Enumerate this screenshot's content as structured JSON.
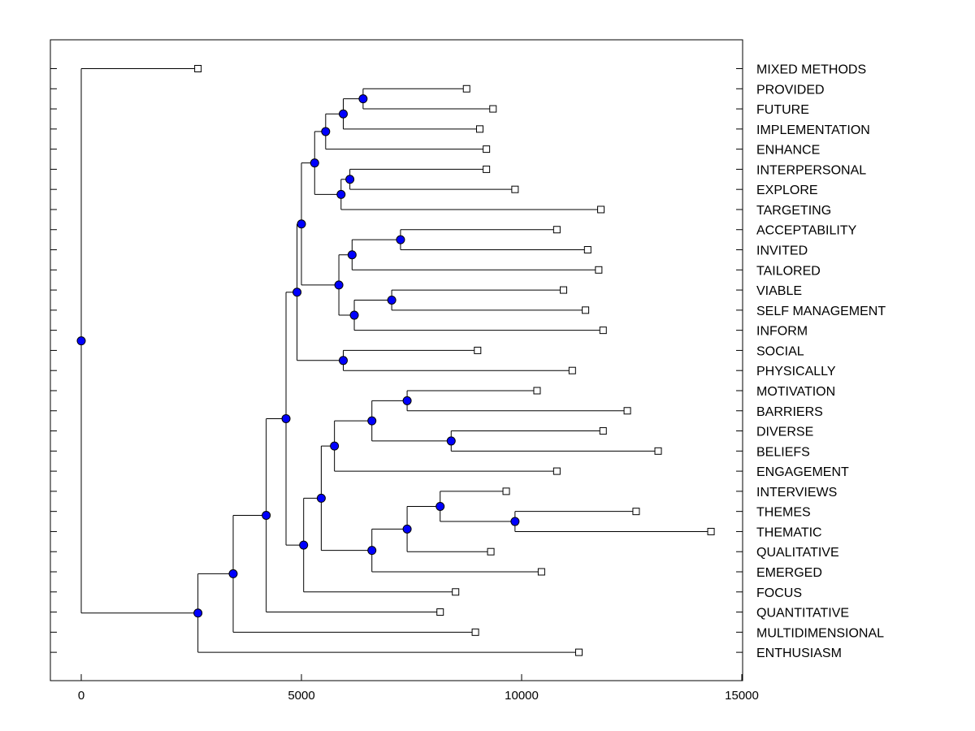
{
  "chart_data": {
    "type": "dendrogram",
    "orientation": "horizontal",
    "x_ticks": [
      0,
      5000,
      10000,
      15000
    ],
    "xlim": [
      -700,
      15000
    ],
    "colors": {
      "node": "#0000ff",
      "line": "#000000"
    },
    "leaves": [
      {
        "label": "MIXED METHODS",
        "x": 2650
      },
      {
        "label": "PROVIDED",
        "x": 8750
      },
      {
        "label": "FUTURE",
        "x": 9350
      },
      {
        "label": "IMPLEMENTATION",
        "x": 9050
      },
      {
        "label": "ENHANCE",
        "x": 9200
      },
      {
        "label": "INTERPERSONAL",
        "x": 9200
      },
      {
        "label": "EXPLORE",
        "x": 9850
      },
      {
        "label": "TARGETING",
        "x": 11800
      },
      {
        "label": "ACCEPTABILITY",
        "x": 10800
      },
      {
        "label": "INVITED",
        "x": 11500
      },
      {
        "label": "TAILORED",
        "x": 11750
      },
      {
        "label": "VIABLE",
        "x": 10950
      },
      {
        "label": "SELF MANAGEMENT",
        "x": 11450
      },
      {
        "label": "INFORM",
        "x": 11850
      },
      {
        "label": "SOCIAL",
        "x": 9000
      },
      {
        "label": "PHYSICALLY",
        "x": 11150
      },
      {
        "label": "MOTIVATION",
        "x": 10350
      },
      {
        "label": "BARRIERS",
        "x": 12400
      },
      {
        "label": "DIVERSE",
        "x": 11850
      },
      {
        "label": "BELIEFS",
        "x": 13100
      },
      {
        "label": "ENGAGEMENT",
        "x": 10800
      },
      {
        "label": "INTERVIEWS",
        "x": 9650
      },
      {
        "label": "THEMES",
        "x": 12600
      },
      {
        "label": "THEMATIC",
        "x": 14300
      },
      {
        "label": "QUALITATIVE",
        "x": 9300
      },
      {
        "label": "EMERGED",
        "x": 10450
      },
      {
        "label": "FOCUS",
        "x": 8500
      },
      {
        "label": "QUANTITATIVE",
        "x": 8150
      },
      {
        "label": "MULTIDIMENSIONAL",
        "x": 8950
      },
      {
        "label": "ENTHUSIASM",
        "x": 11300
      }
    ],
    "merges": [
      {
        "a": "L1",
        "b": "L2",
        "x": 6400
      },
      {
        "a": "M0",
        "b": "L3",
        "x": 5950
      },
      {
        "a": "M1",
        "b": "L4",
        "x": 5550
      },
      {
        "a": "L5",
        "b": "L6",
        "x": 6100
      },
      {
        "a": "M3",
        "b": "L7",
        "x": 5900
      },
      {
        "a": "M2",
        "b": "M4",
        "x": 5300
      },
      {
        "a": "L8",
        "b": "L9",
        "x": 7250
      },
      {
        "a": "M6",
        "b": "L10",
        "x": 6150
      },
      {
        "a": "L11",
        "b": "L12",
        "x": 7050
      },
      {
        "a": "M8",
        "b": "L13",
        "x": 6200
      },
      {
        "a": "M7",
        "b": "M9",
        "x": 5850
      },
      {
        "a": "M5",
        "b": "M10",
        "x": 5000
      },
      {
        "a": "L14",
        "b": "L15",
        "x": 5950
      },
      {
        "a": "M11",
        "b": "M12",
        "x": 4900
      },
      {
        "a": "L16",
        "b": "L17",
        "x": 7400
      },
      {
        "a": "L18",
        "b": "L19",
        "x": 8400
      },
      {
        "a": "M14",
        "b": "M15",
        "x": 6600
      },
      {
        "a": "M16",
        "b": "L20",
        "x": 5750
      },
      {
        "a": "L22",
        "b": "L23",
        "x": 9850
      },
      {
        "a": "L21",
        "b": "M18",
        "x": 8150
      },
      {
        "a": "M19",
        "b": "L24",
        "x": 7400
      },
      {
        "a": "M20",
        "b": "L25",
        "x": 6600
      },
      {
        "a": "M17",
        "b": "M21",
        "x": 5450
      },
      {
        "a": "M22",
        "b": "L26",
        "x": 5050
      },
      {
        "a": "M13",
        "b": "M23",
        "x": 4650
      },
      {
        "a": "M24",
        "b": "L27",
        "x": 4200
      },
      {
        "a": "M25",
        "b": "L28",
        "x": 3450
      },
      {
        "a": "M26",
        "b": "L29",
        "x": 2650
      },
      {
        "a": "L0",
        "b": "M27",
        "x": 0
      }
    ]
  }
}
